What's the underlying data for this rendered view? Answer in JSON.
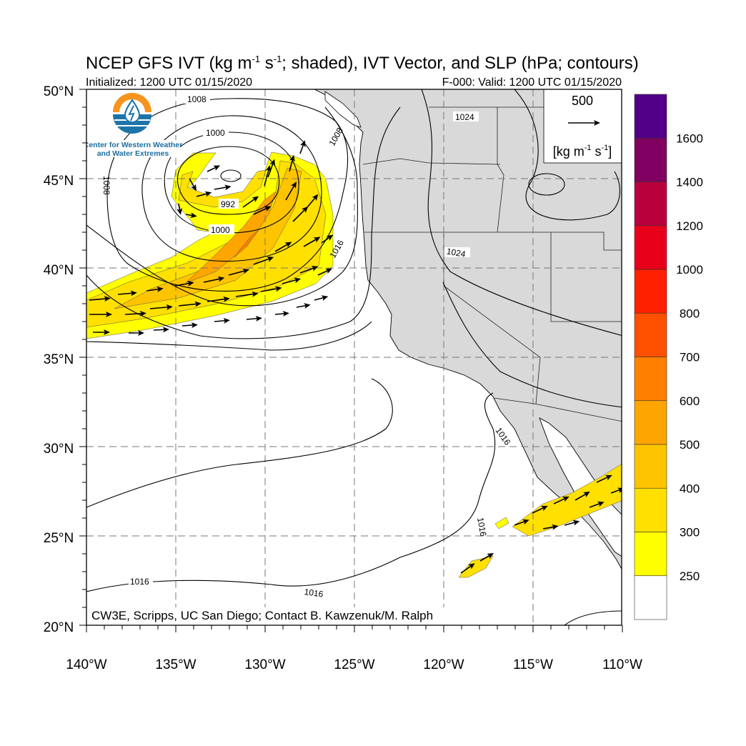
{
  "title": {
    "main": "NCEP GFS IVT (kg m",
    "sup1": "-1",
    "mid": " s",
    "sup2": "-1",
    "rest": "; shaded), IVT Vector, and SLP (hPa; contours)",
    "initialized": "Initialized: 1200 UTC 01/15/2020",
    "valid": "F-000: Valid: 1200 UTC 01/15/2020"
  },
  "logo": {
    "line1": "Center for Western Weather",
    "line2": "and Water Extremes",
    "colors": {
      "top": "#f7941d",
      "bottom": "#1c75a8"
    }
  },
  "reference_vector": {
    "value": "500",
    "unit_a": "[kg m",
    "unit_sup1": "-1",
    "unit_b": " s",
    "unit_sup2": "-1",
    "unit_c": "]"
  },
  "credit": "CW3E, Scripps, UC San Diego; Contact B. Kawzenuk/M. Ralph",
  "axes": {
    "lat_labels": [
      "50°N",
      "45°N",
      "40°N",
      "35°N",
      "30°N",
      "25°N",
      "20°N"
    ],
    "lon_labels": [
      "140°W",
      "135°W",
      "130°W",
      "125°W",
      "120°W",
      "115°W",
      "110°W"
    ],
    "lat_range": [
      20,
      50
    ],
    "lon_range": [
      -140,
      -110
    ]
  },
  "contour_labels": [
    "1008",
    "1000",
    "992",
    "1000",
    "1008",
    "1008",
    "1016",
    "1024",
    "1024",
    "1016",
    "1016",
    "1016",
    "1016"
  ],
  "colorbar": {
    "levels": [
      "1600",
      "1400",
      "1200",
      "1000",
      "800",
      "700",
      "600",
      "500",
      "400",
      "300",
      "250"
    ],
    "colors": [
      "#520088",
      "#7f0060",
      "#b8003c",
      "#e8001a",
      "#ff2000",
      "#ff5000",
      "#ff8000",
      "#ffa500",
      "#ffc400",
      "#ffe000",
      "#ffff00",
      "#ffffff"
    ]
  },
  "colors": {
    "land": "#d9d9d9",
    "ocean": "#ffffff"
  }
}
